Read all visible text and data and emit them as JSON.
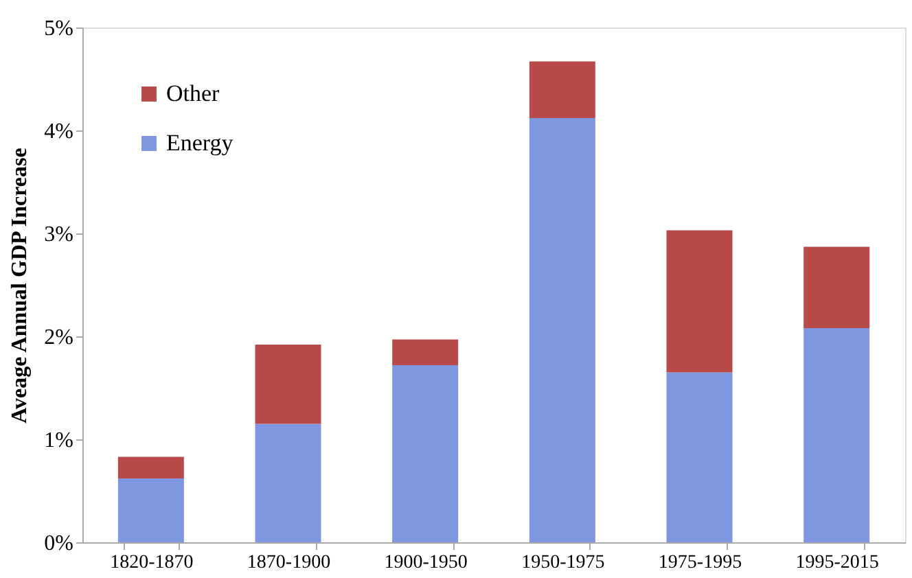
{
  "chart_data": {
    "type": "bar",
    "stacked": true,
    "ylabel": "Aveage Annual GDP Increase",
    "categories": [
      "1820-1870",
      "1870-1900",
      "1900-1950",
      "1950-1975",
      "1975-1995",
      "1995-2015"
    ],
    "series": [
      {
        "name": "Energy",
        "color": "#7f96e0",
        "values": [
          0.62,
          1.15,
          1.72,
          4.12,
          1.65,
          2.08
        ]
      },
      {
        "name": "Other",
        "color": "#b84a4a",
        "values": [
          0.21,
          0.77,
          0.25,
          0.55,
          1.38,
          0.79
        ]
      }
    ],
    "ylim": [
      0,
      5
    ],
    "yticks": [
      {
        "value": 0,
        "label": "0%"
      },
      {
        "value": 1,
        "label": "1%"
      },
      {
        "value": 2,
        "label": "2%"
      },
      {
        "value": 3,
        "label": "3%"
      },
      {
        "value": 4,
        "label": "4%"
      },
      {
        "value": 5,
        "label": "5%"
      }
    ],
    "grid": false,
    "legend": "top left"
  }
}
